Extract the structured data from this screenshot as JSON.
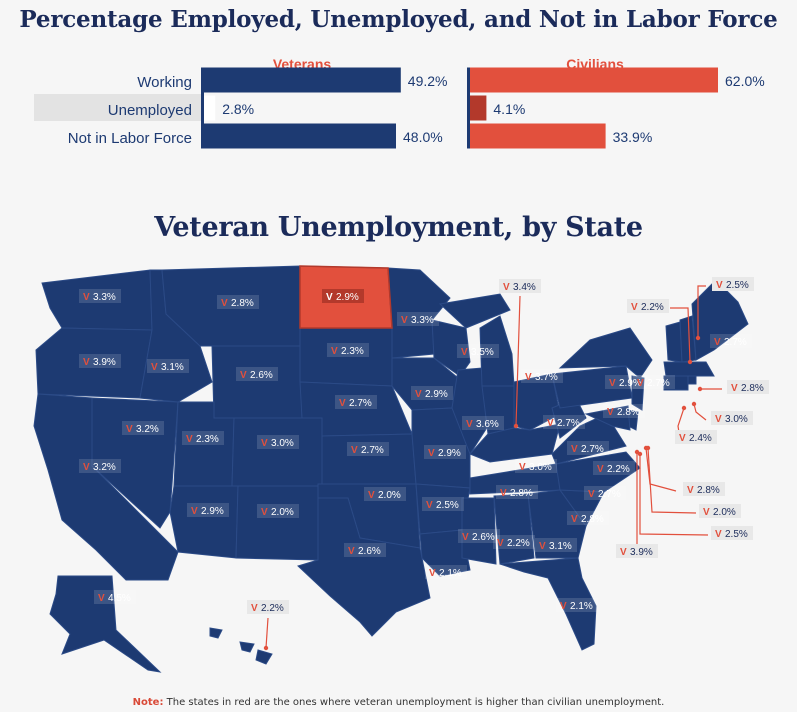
{
  "top_title": "Percentage Employed, Unemployed, and Not in Labor Force",
  "map_title": "Veteran Unemployment, by State",
  "note": {
    "lead": "Note:",
    "text": " The states in red are the ones where veteran unemployment is higher than civilian unemployment."
  },
  "colors": {
    "navy": "#1d3a72",
    "red": "#e2503d",
    "dark_red": "#b3392b",
    "label_bg": "#e3e3e3"
  },
  "chart_data": [
    {
      "type": "bar",
      "orientation": "horizontal",
      "title": "Veterans",
      "categories": [
        "Working",
        "Unemployed",
        "Not in Labor Force"
      ],
      "values": [
        49.2,
        2.8,
        48.0
      ],
      "labels": [
        "49.2%",
        "2.8%",
        "48.0%"
      ],
      "unit": "%",
      "xlim": [
        0,
        62
      ]
    },
    {
      "type": "bar",
      "orientation": "horizontal",
      "title": "Civilians",
      "categories": [
        "Working",
        "Unemployed",
        "Not in Labor Force"
      ],
      "values": [
        62.0,
        4.1,
        33.9
      ],
      "labels": [
        "62.0%",
        "4.1%",
        "33.9%"
      ],
      "unit": "%",
      "xlim": [
        0,
        62
      ]
    }
  ],
  "map": {
    "marker": "V",
    "states": [
      {
        "id": "WA",
        "value": "3.3%",
        "higher": false
      },
      {
        "id": "OR",
        "value": "3.9%",
        "higher": false
      },
      {
        "id": "CA",
        "value": "3.2%",
        "higher": false
      },
      {
        "id": "NV",
        "value": "3.2%",
        "higher": false
      },
      {
        "id": "ID",
        "value": "3.1%",
        "higher": false
      },
      {
        "id": "MT",
        "value": "2.8%",
        "higher": false
      },
      {
        "id": "WY",
        "value": "2.6%",
        "higher": false
      },
      {
        "id": "UT",
        "value": "2.3%",
        "higher": false
      },
      {
        "id": "CO",
        "value": "3.0%",
        "higher": false
      },
      {
        "id": "AZ",
        "value": "2.9%",
        "higher": false
      },
      {
        "id": "NM",
        "value": "2.0%",
        "higher": false
      },
      {
        "id": "ND",
        "value": "2.9%",
        "higher": true
      },
      {
        "id": "SD",
        "value": "2.3%",
        "higher": false
      },
      {
        "id": "NE",
        "value": "2.7%",
        "higher": false
      },
      {
        "id": "KS",
        "value": "2.7%",
        "higher": false
      },
      {
        "id": "OK",
        "value": "2.0%",
        "higher": false
      },
      {
        "id": "TX",
        "value": "2.6%",
        "higher": false
      },
      {
        "id": "MN",
        "value": "3.3%",
        "higher": false
      },
      {
        "id": "IA",
        "value": "2.9%",
        "higher": false
      },
      {
        "id": "MO",
        "value": "2.9%",
        "higher": false
      },
      {
        "id": "AR",
        "value": "2.5%",
        "higher": false
      },
      {
        "id": "LA",
        "value": "2.1%",
        "higher": false
      },
      {
        "id": "WI",
        "value": "3.5%",
        "higher": false
      },
      {
        "id": "IL",
        "value": "3.6%",
        "higher": false
      },
      {
        "id": "MI",
        "value": "3.7%",
        "higher": false
      },
      {
        "id": "IN",
        "value": "2.7%",
        "higher": false
      },
      {
        "id": "OH",
        "value": "2.9%",
        "higher": false
      },
      {
        "id": "KY",
        "value": "3.0%",
        "higher": false
      },
      {
        "id": "TN",
        "value": "2.8%",
        "higher": false
      },
      {
        "id": "MS",
        "value": "2.6%",
        "higher": false
      },
      {
        "id": "AL",
        "value": "2.2%",
        "higher": false
      },
      {
        "id": "GA",
        "value": "3.1%",
        "higher": false
      },
      {
        "id": "FL",
        "value": "2.1%",
        "higher": false
      },
      {
        "id": "SC",
        "value": "2.8%",
        "higher": false
      },
      {
        "id": "NC",
        "value": "2.7%",
        "higher": false
      },
      {
        "id": "VA",
        "value": "2.2%",
        "higher": false
      },
      {
        "id": "WV",
        "value": "2.7%",
        "higher": false
      },
      {
        "id": "PA",
        "value": "2.8%",
        "higher": false
      },
      {
        "id": "NY",
        "value": "2.7%",
        "higher": false
      },
      {
        "id": "VT",
        "value": "2.2%",
        "higher": false
      },
      {
        "id": "NH",
        "value": "2.5%",
        "higher": false
      },
      {
        "id": "ME",
        "value": "2.7%",
        "higher": false
      },
      {
        "id": "MA",
        "value": "2.8%",
        "higher": false
      },
      {
        "id": "RI",
        "value": "3.0%",
        "higher": false
      },
      {
        "id": "CT",
        "value": "2.4%",
        "higher": false
      },
      {
        "id": "NJ",
        "value": "2.8%",
        "higher": false
      },
      {
        "id": "DE",
        "value": "2.0%",
        "higher": false
      },
      {
        "id": "MD",
        "value": "2.5%",
        "higher": false
      },
      {
        "id": "DC",
        "value": "3.9%",
        "higher": false
      },
      {
        "id": "UP",
        "value": "3.4%",
        "higher": false
      },
      {
        "id": "AK",
        "value": "4.5%",
        "higher": false
      },
      {
        "id": "HI",
        "value": "2.2%",
        "higher": false
      }
    ]
  }
}
